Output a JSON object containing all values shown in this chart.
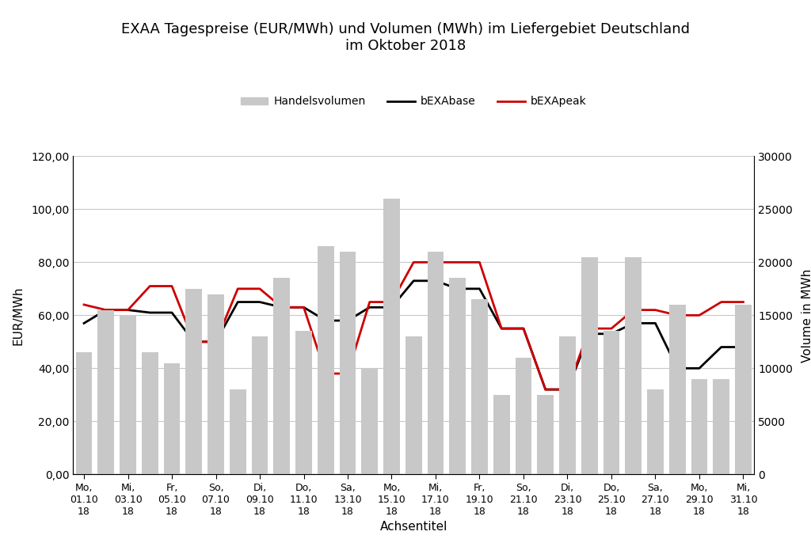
{
  "title": "EXAA Tagespreise (EUR/MWh) und Volumen (MWh) im Liefergebiet Deutschland\nim Oktober 2018",
  "xlabel": "Achsentitel",
  "ylabel_left": "EUR/MWh",
  "ylabel_right": "Volume in MWh",
  "xtick_labels": [
    "Mo,\n01.10\n18",
    "Mi,\n03.10\n18",
    "Fr,\n05.10\n18",
    "So,\n07.10\n18",
    "Di,\n09.10\n18",
    "Do,\n11.10\n18",
    "Sa,\n13.10\n18",
    "Mo,\n15.10\n18",
    "Mi,\n17.10\n18",
    "Fr,\n19.10\n18",
    "So,\n21.10\n18",
    "Di,\n23.10\n18",
    "Do,\n25.10\n18",
    "Sa,\n27.10\n18",
    "Mo,\n29.10\n18",
    "Mi,\n31.10\n18"
  ],
  "xtick_positions": [
    0,
    2,
    4,
    6,
    8,
    10,
    12,
    14,
    16,
    18,
    20,
    22,
    24,
    26,
    28,
    30
  ],
  "volume_MWh": [
    11500,
    15500,
    15000,
    11500,
    10500,
    17500,
    17000,
    8000,
    13000,
    18500,
    13500,
    21500,
    21000,
    10000,
    26000,
    13000,
    21000,
    18500,
    16500,
    7500,
    11000,
    7500,
    13000,
    20500,
    13500,
    20500,
    8000,
    16000,
    9000,
    9000,
    16000
  ],
  "bEXAbase": [
    57,
    62,
    62,
    61,
    61,
    50,
    50,
    65,
    65,
    63,
    63,
    58,
    58,
    63,
    63,
    73,
    73,
    70,
    70,
    55,
    55,
    32,
    32,
    53,
    53,
    57,
    57,
    40,
    40,
    48,
    48
  ],
  "bEXApeak": [
    64,
    62,
    62,
    71,
    71,
    50,
    50,
    70,
    70,
    63,
    63,
    38,
    38,
    65,
    65,
    80,
    80,
    80,
    80,
    55,
    55,
    32,
    32,
    55,
    55,
    62,
    62,
    60,
    60,
    65,
    65
  ],
  "ylim_left": [
    0,
    120
  ],
  "ylim_right": [
    0,
    30000
  ],
  "yticks_left": [
    0,
    20,
    40,
    60,
    80,
    100,
    120
  ],
  "yticks_right": [
    0,
    5000,
    10000,
    15000,
    20000,
    25000,
    30000
  ],
  "bar_color": "#c8c8c8",
  "base_color": "#000000",
  "peak_color": "#cc0000",
  "legend_bar_label": "Handelsvolumen",
  "legend_base_label": "bEXAbase",
  "legend_peak_label": "bEXApeak",
  "background_color": "#ffffff",
  "grid_color": "#c8c8c8"
}
